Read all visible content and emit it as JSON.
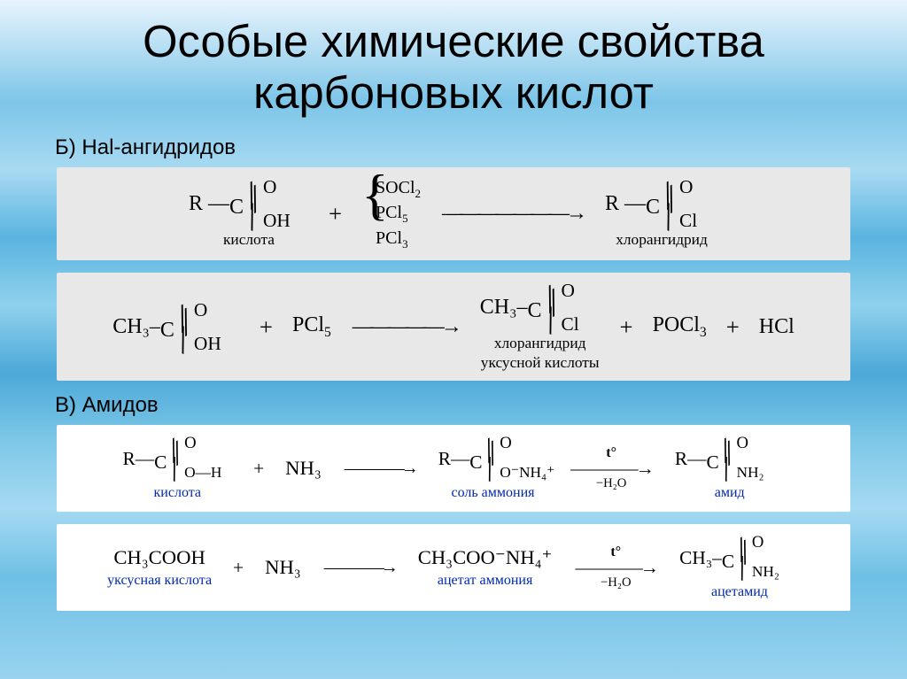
{
  "title": "Особые химические свойства карбоновых кислот",
  "section_b": "Б) Hal-ангидридов",
  "section_c": "В) Амидов",
  "rx1": {
    "acid_prefix": "R —",
    "acid_label": "кислота",
    "reagents": [
      "SOCl",
      "PCl",
      "PCl"
    ],
    "reagent_subs": [
      "2",
      "5",
      "3"
    ],
    "prod_prefix": "R —",
    "prod_label": "хлорангидрид",
    "c": "C",
    "o": "O",
    "oh": "OH",
    "cl": "Cl"
  },
  "rx2": {
    "acid_prefix": "CH₃–",
    "reagent": "PCl",
    "reagent_sub": "5",
    "prod_prefix": "CH₃–",
    "by1": "POCl",
    "by1_sub": "3",
    "by2": "HCl",
    "prod_label_l1": "хлорангидрид",
    "prod_label_l2": "уксусной кислоты",
    "c": "C",
    "o": "O",
    "oh": "OH",
    "cl": "Cl"
  },
  "rx3": {
    "acid_prefix": "R—",
    "acid_label": "кислота",
    "nh3": "NH₃",
    "salt_prefix": "R—",
    "salt_grp": "O⁻NH₄⁺",
    "salt_label": "соль аммония",
    "cond_top": "t°",
    "cond_bot": "−H₂O",
    "amide_prefix": "R—",
    "amide_grp": "NH₂",
    "amide_label": "амид",
    "c": "C",
    "o": "O",
    "oh": "O—H"
  },
  "rx4": {
    "acid": "CH₃COOH",
    "acid_label": "уксусная кислота",
    "nh3": "NH₃",
    "salt": "CH₃COO⁻NH₄⁺",
    "salt_label": "ацетат аммония",
    "cond_top": "t°",
    "cond_bot": "−H₂O",
    "amide_prefix": "CH₃–",
    "amide_grp": "NH₂",
    "amide_label": "ацетамид",
    "c": "C",
    "o": "O"
  },
  "colors": {
    "bg_box_gray": "#e8e8e8",
    "bg_box_white": "#ffffff",
    "blue_label": "#0029b3",
    "text": "#000000"
  }
}
